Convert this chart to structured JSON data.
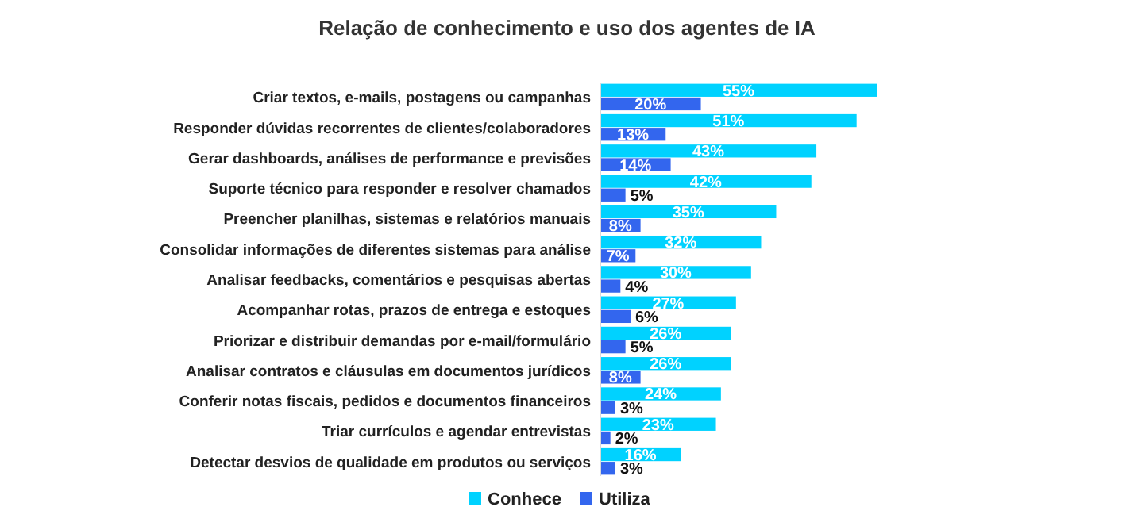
{
  "chart_data": {
    "type": "bar",
    "orientation": "horizontal",
    "title": "Relação de conhecimento e uso dos agentes de IA",
    "categories": [
      "Criar textos, e-mails, postagens ou campanhas",
      "Responder dúvidas recorrentes de clientes/colaboradores",
      "Gerar dashboards, análises de performance e previsões",
      "Suporte técnico para responder e resolver chamados",
      "Preencher planilhas, sistemas e relatórios manuais",
      "Consolidar informações de diferentes sistemas para análise",
      "Analisar feedbacks, comentários e pesquisas abertas",
      "Acompanhar rotas, prazos de entrega e estoques",
      "Priorizar e distribuir demandas por e-mail/formulário",
      "Analisar contratos e cláusulas em documentos jurídicos",
      "Conferir notas fiscais, pedidos e documentos financeiros",
      "Triar currículos e agendar entrevistas",
      "Detectar desvios de qualidade em produtos ou serviços"
    ],
    "series": [
      {
        "name": "Conhece",
        "color": "#00d2ff",
        "values": [
          55,
          51,
          43,
          42,
          35,
          32,
          30,
          27,
          26,
          26,
          24,
          23,
          16
        ],
        "value_labels": [
          "55%",
          "51%",
          "43%",
          "42%",
          "35%",
          "32%",
          "30%",
          "27%",
          "26%",
          "26%",
          "24%",
          "23%",
          "16%"
        ]
      },
      {
        "name": "Utiliza",
        "color": "#3366ee",
        "values": [
          20,
          13,
          14,
          5,
          8,
          7,
          4,
          6,
          5,
          8,
          3,
          2,
          3
        ],
        "value_labels": [
          "20%",
          "13%",
          "14%",
          "5%",
          "8%",
          "7%",
          "4%",
          "6%",
          "5%",
          "8%",
          "3%",
          "2%",
          "3%"
        ]
      }
    ],
    "legend": "bottom"
  }
}
